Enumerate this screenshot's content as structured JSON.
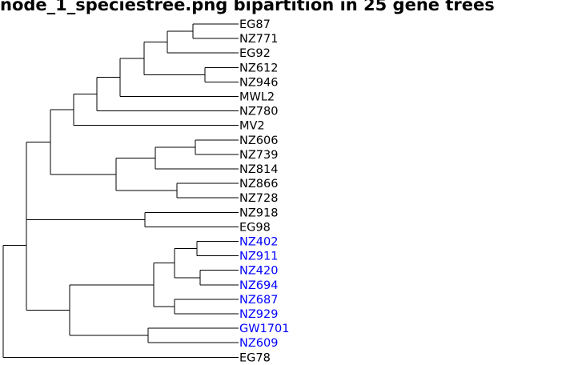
{
  "title": "node_1_speciestree.png bipartition in 25 gene trees",
  "colors": {
    "branch": "#000000",
    "default_label": "#000000",
    "highlight_label": "#0000ff"
  },
  "leaves": [
    {
      "name": "EG87",
      "highlight": false
    },
    {
      "name": "NZ771",
      "highlight": false
    },
    {
      "name": "EG92",
      "highlight": false
    },
    {
      "name": "NZ612",
      "highlight": false
    },
    {
      "name": "NZ946",
      "highlight": false
    },
    {
      "name": "MWL2",
      "highlight": false
    },
    {
      "name": "NZ780",
      "highlight": false
    },
    {
      "name": "MV2",
      "highlight": false
    },
    {
      "name": "NZ606",
      "highlight": false
    },
    {
      "name": "NZ739",
      "highlight": false
    },
    {
      "name": "NZ814",
      "highlight": false
    },
    {
      "name": "NZ866",
      "highlight": false
    },
    {
      "name": "NZ728",
      "highlight": false
    },
    {
      "name": "NZ918",
      "highlight": false
    },
    {
      "name": "EG98",
      "highlight": false
    },
    {
      "name": "NZ402",
      "highlight": true
    },
    {
      "name": "NZ911",
      "highlight": true
    },
    {
      "name": "NZ420",
      "highlight": true
    },
    {
      "name": "NZ694",
      "highlight": true
    },
    {
      "name": "NZ687",
      "highlight": true
    },
    {
      "name": "NZ929",
      "highlight": true
    },
    {
      "name": "GW1701",
      "highlight": true
    },
    {
      "name": "NZ609",
      "highlight": true
    },
    {
      "name": "EG78",
      "highlight": false
    }
  ],
  "tree": {
    "children": [
      {
        "children": [
          {
            "children": [
              {
                "children": [
                  {
                    "children": [
                      {
                        "children": [
                          {
                            "children": [
                              {
                                "children": [
                                  {
                                    "leaf": 0
                                  },
                                  {
                                    "leaf": 1
                                  }
                                ]
                              },
                              {
                                "leaf": 2
                              }
                            ]
                          },
                          {
                            "children": [
                              {
                                "leaf": 3
                              },
                              {
                                "leaf": 4
                              }
                            ]
                          }
                        ]
                      },
                      {
                        "leaf": 5
                      }
                    ]
                  },
                  {
                    "leaf": 6
                  }
                ]
              },
              {
                "leaf": 7
              }
            ]
          },
          {
            "children": [
              {
                "children": [
                  {
                    "children": [
                      {
                        "leaf": 8
                      },
                      {
                        "leaf": 9
                      }
                    ]
                  },
                  {
                    "leaf": 10
                  }
                ]
              },
              {
                "children": [
                  {
                    "leaf": 11
                  },
                  {
                    "leaf": 12
                  }
                ]
              }
            ]
          }
        ]
      },
      {
        "children": [
          {
            "leaf": 13
          },
          {
            "leaf": 14
          }
        ]
      }
    ]
  },
  "subtree": {
    "children": [
      {
        "children": [
          {
            "children": [
              {
                "leaf": 15
              },
              {
                "leaf": 16
              }
            ]
          },
          {
            "children": [
              {
                "leaf": 17
              },
              {
                "leaf": 18
              }
            ]
          }
        ]
      },
      {
        "children": [
          {
            "leaf": 19
          },
          {
            "leaf": 20
          }
        ]
      }
    ]
  },
  "subtree2": {
    "children": [
      {
        "leaf": 21
      },
      {
        "leaf": 22
      }
    ]
  },
  "outgroup_leaf": 23
}
